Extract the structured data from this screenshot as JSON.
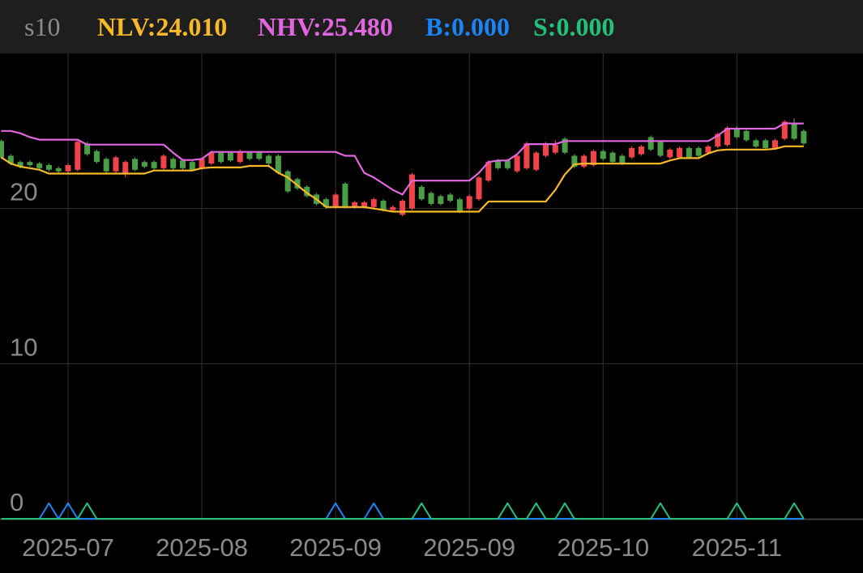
{
  "chart_data": {
    "type": "candlestick",
    "title": "s10",
    "categories": [
      null,
      null,
      null,
      null,
      null,
      null,
      null,
      "2025-07",
      null,
      null,
      null,
      null,
      null,
      null,
      null,
      null,
      null,
      null,
      null,
      null,
      null,
      "2025-08",
      null,
      null,
      null,
      null,
      null,
      null,
      null,
      null,
      null,
      null,
      null,
      null,
      null,
      "2025-09",
      null,
      null,
      null,
      null,
      null,
      null,
      null,
      null,
      null,
      null,
      null,
      null,
      null,
      "2025-09",
      null,
      null,
      null,
      null,
      null,
      null,
      null,
      null,
      null,
      null,
      null,
      null,
      null,
      "2025-10",
      null,
      null,
      null,
      null,
      null,
      null,
      null,
      null,
      null,
      null,
      null,
      null,
      null,
      "2025-11",
      null,
      null,
      null,
      null,
      null,
      null,
      null
    ],
    "open": [
      24.35,
      23.4,
      23.0,
      23.0,
      22.9,
      22.8,
      22.6,
      22.4,
      22.5,
      24.2,
      23.7,
      23.2,
      22.4,
      22.2,
      23.2,
      23.0,
      23.0,
      22.6,
      23.2,
      23.1,
      23.0,
      22.6,
      22.9,
      23.6,
      23.6,
      23.0,
      23.6,
      23.6,
      23.4,
      23.4,
      22.4,
      21.9,
      21.4,
      20.9,
      20.6,
      20.1,
      21.6,
      20.1,
      20.1,
      20.1,
      20.5,
      19.9,
      19.6,
      20.0,
      21.4,
      21.0,
      20.8,
      20.9,
      20.6,
      20.0,
      20.6,
      21.8,
      23.1,
      23.1,
      22.4,
      22.6,
      22.5,
      23.4,
      23.6,
      24.5,
      23.4,
      22.7,
      22.8,
      23.7,
      23.6,
      23.4,
      23.3,
      23.5,
      24.6,
      24.3,
      23.3,
      23.3,
      23.9,
      23.9,
      23.6,
      24.0,
      24.1,
      25.2,
      25.0,
      24.4,
      24.4,
      23.9,
      24.5,
      25.5,
      25.0
    ],
    "close": [
      23.3,
      22.9,
      22.7,
      22.8,
      22.6,
      22.5,
      22.4,
      22.8,
      24.3,
      23.5,
      23.0,
      22.4,
      23.3,
      23.0,
      22.5,
      22.7,
      22.6,
      23.4,
      22.6,
      22.6,
      22.5,
      23.2,
      23.6,
      23.0,
      23.1,
      23.7,
      23.2,
      23.2,
      22.9,
      22.3,
      21.1,
      21.3,
      20.8,
      20.3,
      20.1,
      20.9,
      20.1,
      20.4,
      20.4,
      20.6,
      19.9,
      20.1,
      20.5,
      22.2,
      20.6,
      20.3,
      20.3,
      20.5,
      19.8,
      20.8,
      22.0,
      23.0,
      22.6,
      22.6,
      23.4,
      24.2,
      23.6,
      24.2,
      24.1,
      23.6,
      22.7,
      23.4,
      23.7,
      23.2,
      23.0,
      22.9,
      23.9,
      24.0,
      23.8,
      23.4,
      23.8,
      23.9,
      23.3,
      23.4,
      24.0,
      24.8,
      25.2,
      24.6,
      24.4,
      24.0,
      23.9,
      24.4,
      25.6,
      24.5,
      24.2
    ],
    "high": [
      24.45,
      23.5,
      23.1,
      23.1,
      23.0,
      22.9,
      22.7,
      22.9,
      24.4,
      24.3,
      23.8,
      23.3,
      23.4,
      23.1,
      23.3,
      23.1,
      23.1,
      23.5,
      23.3,
      23.2,
      23.1,
      23.3,
      23.7,
      23.7,
      23.7,
      23.8,
      23.7,
      23.7,
      23.5,
      23.5,
      22.5,
      22.0,
      21.5,
      21.0,
      20.7,
      21.0,
      21.7,
      20.5,
      20.5,
      20.7,
      20.6,
      20.2,
      20.6,
      22.3,
      21.5,
      21.1,
      20.9,
      21.0,
      20.7,
      20.9,
      22.1,
      23.1,
      23.2,
      23.2,
      23.5,
      24.3,
      23.7,
      24.3,
      24.4,
      24.6,
      23.5,
      23.5,
      23.8,
      23.8,
      23.7,
      23.5,
      24.0,
      24.1,
      24.7,
      24.4,
      23.9,
      24.0,
      24.0,
      24.0,
      24.1,
      24.9,
      25.3,
      25.3,
      25.1,
      24.5,
      24.5,
      24.5,
      25.7,
      25.8,
      25.1
    ],
    "low": [
      23.2,
      22.8,
      22.6,
      22.7,
      22.5,
      22.4,
      22.3,
      22.3,
      22.4,
      23.4,
      22.9,
      22.3,
      22.3,
      22.0,
      22.4,
      22.6,
      22.5,
      22.5,
      22.5,
      22.5,
      22.4,
      22.5,
      22.8,
      22.9,
      23.0,
      22.9,
      23.1,
      23.1,
      22.8,
      22.2,
      21.0,
      21.2,
      20.7,
      20.2,
      20.0,
      20.0,
      20.0,
      20.0,
      20.0,
      20.0,
      19.8,
      19.8,
      19.5,
      19.9,
      20.5,
      20.2,
      20.2,
      20.4,
      19.7,
      19.9,
      20.5,
      21.7,
      22.5,
      22.5,
      22.3,
      22.5,
      22.4,
      23.3,
      23.5,
      23.5,
      22.6,
      22.6,
      22.7,
      23.1,
      22.9,
      22.8,
      23.2,
      23.4,
      23.7,
      23.3,
      23.2,
      23.2,
      23.2,
      23.3,
      23.5,
      23.9,
      24.0,
      24.5,
      24.3,
      23.9,
      23.8,
      23.8,
      24.4,
      24.4,
      24.1
    ],
    "up_color": "#f0434a",
    "down_color": "#4a9e45",
    "series": [
      {
        "name": "NLV:24.010",
        "color": "#f7b928",
        "values": [
          23.3,
          22.9,
          22.7,
          22.6,
          22.5,
          22.25,
          22.25,
          22.25,
          22.25,
          22.25,
          22.25,
          22.25,
          22.25,
          22.25,
          22.25,
          22.25,
          22.45,
          22.45,
          22.45,
          22.45,
          22.45,
          22.6,
          22.65,
          22.65,
          22.65,
          22.65,
          22.75,
          22.75,
          22.75,
          22.3,
          22.0,
          21.5,
          21.0,
          20.6,
          20.1,
          20.1,
          20.1,
          20.1,
          20.1,
          20.0,
          19.9,
          19.8,
          19.8,
          19.8,
          19.8,
          19.8,
          19.8,
          19.8,
          19.8,
          19.8,
          19.8,
          20.45,
          20.45,
          20.45,
          20.45,
          20.45,
          20.45,
          20.45,
          21.2,
          22.2,
          22.85,
          22.9,
          22.9,
          22.9,
          22.9,
          22.9,
          22.9,
          22.9,
          22.9,
          22.9,
          23.1,
          23.25,
          23.25,
          23.25,
          23.55,
          23.75,
          23.8,
          23.8,
          23.8,
          23.8,
          23.8,
          23.85,
          24.01,
          24.01,
          24.01
        ]
      },
      {
        "name": "NHV:25.480",
        "color": "#e067e0",
        "values": [
          25.0,
          25.0,
          24.85,
          24.6,
          24.44,
          24.44,
          24.44,
          24.44,
          24.44,
          24.12,
          24.12,
          24.12,
          24.12,
          24.12,
          24.12,
          24.12,
          24.12,
          24.12,
          23.6,
          23.13,
          23.13,
          23.2,
          23.65,
          23.65,
          23.65,
          23.65,
          23.65,
          23.65,
          23.65,
          23.65,
          23.65,
          23.65,
          23.65,
          23.65,
          23.65,
          23.65,
          23.4,
          23.4,
          22.3,
          22.0,
          21.6,
          21.2,
          20.9,
          21.8,
          21.8,
          21.8,
          21.8,
          21.8,
          21.8,
          21.8,
          22.3,
          23.0,
          23.1,
          23.1,
          23.5,
          24.15,
          24.15,
          24.15,
          24.15,
          24.35,
          24.35,
          24.35,
          24.35,
          24.35,
          24.35,
          24.35,
          24.35,
          24.35,
          24.35,
          24.35,
          24.35,
          24.35,
          24.35,
          24.35,
          24.35,
          24.7,
          25.15,
          25.15,
          25.15,
          25.15,
          25.15,
          25.15,
          25.5,
          25.48,
          25.48
        ]
      },
      {
        "name": "B:0.000",
        "color": "#1a84f5",
        "values": [
          0,
          0,
          0,
          0,
          0,
          1,
          0,
          1,
          0,
          0,
          0,
          0,
          0,
          0,
          0,
          0,
          0,
          0,
          0,
          0,
          0,
          0,
          0,
          0,
          0,
          0,
          0,
          0,
          0,
          0,
          0,
          0,
          0,
          0,
          0,
          1,
          0,
          0,
          0,
          1,
          0,
          0,
          0,
          0,
          0,
          0,
          0,
          0,
          0,
          0,
          0,
          0,
          0,
          0,
          0,
          0,
          0,
          0,
          0,
          0,
          0,
          0,
          0,
          0,
          0,
          0,
          0,
          0,
          0,
          0,
          0,
          0,
          0,
          0,
          0,
          0,
          0,
          0,
          0,
          0,
          0,
          0,
          0,
          0,
          0
        ]
      },
      {
        "name": "S:0.000",
        "color": "#22c07a",
        "values": [
          0,
          0,
          0,
          0,
          0,
          0,
          0,
          0,
          0,
          1,
          0,
          0,
          0,
          0,
          0,
          0,
          0,
          0,
          0,
          0,
          0,
          0,
          0,
          0,
          0,
          0,
          0,
          0,
          0,
          0,
          0,
          0,
          0,
          0,
          0,
          0,
          0,
          0,
          0,
          0,
          0,
          0,
          0,
          0,
          1,
          0,
          0,
          0,
          0,
          0,
          0,
          0,
          0,
          1,
          0,
          0,
          1,
          0,
          0,
          1,
          0,
          0,
          0,
          0,
          0,
          0,
          0,
          0,
          0,
          1,
          0,
          0,
          0,
          0,
          0,
          0,
          0,
          1,
          0,
          0,
          0,
          0,
          0,
          1,
          0
        ]
      }
    ],
    "ylim": [
      0,
      30
    ],
    "yticks": [
      0,
      10,
      20
    ],
    "grid": true
  }
}
